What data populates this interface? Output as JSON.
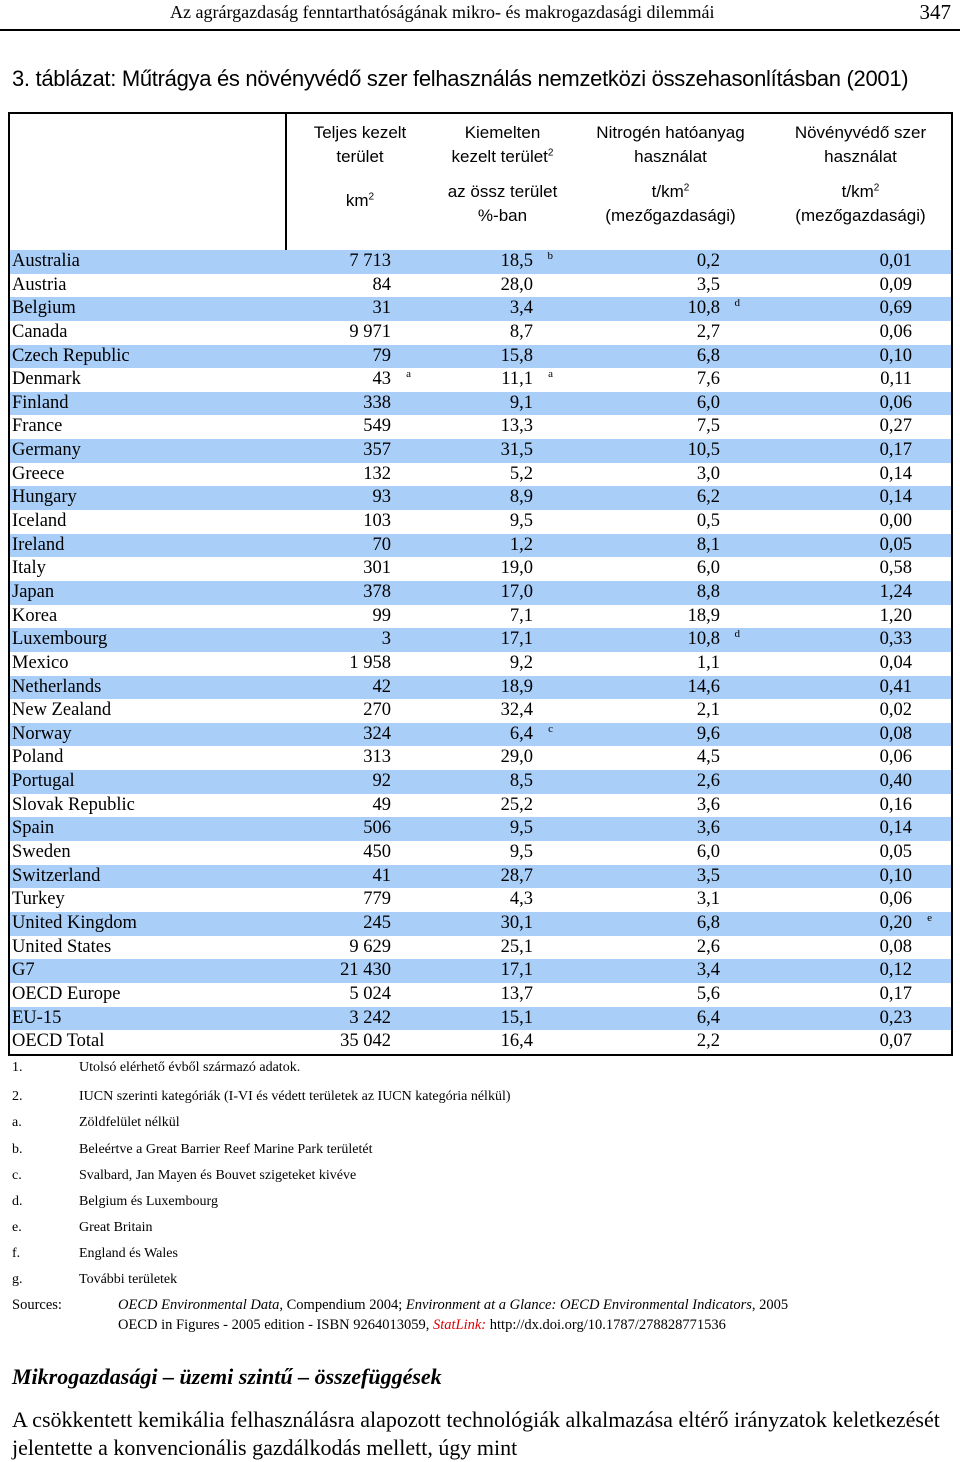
{
  "header": {
    "title": "Az agrárgazdaság fenntarthatóságának mikro- és makrogazdasági dilemmái",
    "page_number": "347"
  },
  "table": {
    "title": "3. táblázat: Műtrágya és növényvédő szer felhasználás nemzetközi összehasonlításban (2001)",
    "columns": [
      {
        "line1": "Teljes kezelt",
        "line2": "terület",
        "sup": "",
        "unit1": "km",
        "unit_sup": "2",
        "unit2": ""
      },
      {
        "line1": "Kiemelten",
        "line2": "kezelt terület",
        "sup": "2",
        "unit1": "az össz terület",
        "unit_sup": "",
        "unit2": "%-ban"
      },
      {
        "line1": "Nitrogén hatóanyag",
        "line2": "használat",
        "sup": "",
        "unit1": "t/km",
        "unit_sup": "2",
        "unit2": "(mezőgazdasági)"
      },
      {
        "line1": "Növényvédő szer",
        "line2": "használat",
        "sup": "",
        "unit1": "t/km",
        "unit_sup": "2",
        "unit2": "(mezőgazdasági)"
      }
    ],
    "rows": [
      {
        "country": "Australia",
        "area": "7 713",
        "area_fn": "",
        "pct": "18,5",
        "pct_fn": "b",
        "nitrogen": "0,2",
        "nitrogen_fn": "",
        "pesticide": "0,01",
        "pesticide_fn": ""
      },
      {
        "country": "Austria",
        "area": "84",
        "area_fn": "",
        "pct": "28,0",
        "pct_fn": "",
        "nitrogen": "3,5",
        "nitrogen_fn": "",
        "pesticide": "0,09",
        "pesticide_fn": ""
      },
      {
        "country": "Belgium",
        "area": "31",
        "area_fn": "",
        "pct": "3,4",
        "pct_fn": "",
        "nitrogen": "10,8",
        "nitrogen_fn": "d",
        "pesticide": "0,69",
        "pesticide_fn": ""
      },
      {
        "country": "Canada",
        "area": "9 971",
        "area_fn": "",
        "pct": "8,7",
        "pct_fn": "",
        "nitrogen": "2,7",
        "nitrogen_fn": "",
        "pesticide": "0,06",
        "pesticide_fn": ""
      },
      {
        "country": "Czech Republic",
        "area": "79",
        "area_fn": "",
        "pct": "15,8",
        "pct_fn": "",
        "nitrogen": "6,8",
        "nitrogen_fn": "",
        "pesticide": "0,10",
        "pesticide_fn": ""
      },
      {
        "country": "Denmark",
        "area": "43",
        "area_fn": "a",
        "pct": "11,1",
        "pct_fn": "a",
        "nitrogen": "7,6",
        "nitrogen_fn": "",
        "pesticide": "0,11",
        "pesticide_fn": ""
      },
      {
        "country": "Finland",
        "area": "338",
        "area_fn": "",
        "pct": "9,1",
        "pct_fn": "",
        "nitrogen": "6,0",
        "nitrogen_fn": "",
        "pesticide": "0,06",
        "pesticide_fn": ""
      },
      {
        "country": "France",
        "area": "549",
        "area_fn": "",
        "pct": "13,3",
        "pct_fn": "",
        "nitrogen": "7,5",
        "nitrogen_fn": "",
        "pesticide": "0,27",
        "pesticide_fn": ""
      },
      {
        "country": "Germany",
        "area": "357",
        "area_fn": "",
        "pct": "31,5",
        "pct_fn": "",
        "nitrogen": "10,5",
        "nitrogen_fn": "",
        "pesticide": "0,17",
        "pesticide_fn": ""
      },
      {
        "country": "Greece",
        "area": "132",
        "area_fn": "",
        "pct": "5,2",
        "pct_fn": "",
        "nitrogen": "3,0",
        "nitrogen_fn": "",
        "pesticide": "0,14",
        "pesticide_fn": ""
      },
      {
        "country": "Hungary",
        "area": "93",
        "area_fn": "",
        "pct": "8,9",
        "pct_fn": "",
        "nitrogen": "6,2",
        "nitrogen_fn": "",
        "pesticide": "0,14",
        "pesticide_fn": ""
      },
      {
        "country": "Iceland",
        "area": "103",
        "area_fn": "",
        "pct": "9,5",
        "pct_fn": "",
        "nitrogen": "0,5",
        "nitrogen_fn": "",
        "pesticide": "0,00",
        "pesticide_fn": ""
      },
      {
        "country": "Ireland",
        "area": "70",
        "area_fn": "",
        "pct": "1,2",
        "pct_fn": "",
        "nitrogen": "8,1",
        "nitrogen_fn": "",
        "pesticide": "0,05",
        "pesticide_fn": ""
      },
      {
        "country": "Italy",
        "area": "301",
        "area_fn": "",
        "pct": "19,0",
        "pct_fn": "",
        "nitrogen": "6,0",
        "nitrogen_fn": "",
        "pesticide": "0,58",
        "pesticide_fn": ""
      },
      {
        "country": "Japan",
        "area": "378",
        "area_fn": "",
        "pct": "17,0",
        "pct_fn": "",
        "nitrogen": "8,8",
        "nitrogen_fn": "",
        "pesticide": "1,24",
        "pesticide_fn": ""
      },
      {
        "country": "Korea",
        "area": "99",
        "area_fn": "",
        "pct": "7,1",
        "pct_fn": "",
        "nitrogen": "18,9",
        "nitrogen_fn": "",
        "pesticide": "1,20",
        "pesticide_fn": ""
      },
      {
        "country": "Luxembourg",
        "area": "3",
        "area_fn": "",
        "pct": "17,1",
        "pct_fn": "",
        "nitrogen": "10,8",
        "nitrogen_fn": "d",
        "pesticide": "0,33",
        "pesticide_fn": ""
      },
      {
        "country": "Mexico",
        "area": "1 958",
        "area_fn": "",
        "pct": "9,2",
        "pct_fn": "",
        "nitrogen": "1,1",
        "nitrogen_fn": "",
        "pesticide": "0,04",
        "pesticide_fn": ""
      },
      {
        "country": "Netherlands",
        "area": "42",
        "area_fn": "",
        "pct": "18,9",
        "pct_fn": "",
        "nitrogen": "14,6",
        "nitrogen_fn": "",
        "pesticide": "0,41",
        "pesticide_fn": ""
      },
      {
        "country": "New Zealand",
        "area": "270",
        "area_fn": "",
        "pct": "32,4",
        "pct_fn": "",
        "nitrogen": "2,1",
        "nitrogen_fn": "",
        "pesticide": "0,02",
        "pesticide_fn": ""
      },
      {
        "country": "Norway",
        "area": "324",
        "area_fn": "",
        "pct": "6,4",
        "pct_fn": "c",
        "nitrogen": "9,6",
        "nitrogen_fn": "",
        "pesticide": "0,08",
        "pesticide_fn": ""
      },
      {
        "country": "Poland",
        "area": "313",
        "area_fn": "",
        "pct": "29,0",
        "pct_fn": "",
        "nitrogen": "4,5",
        "nitrogen_fn": "",
        "pesticide": "0,06",
        "pesticide_fn": ""
      },
      {
        "country": "Portugal",
        "area": "92",
        "area_fn": "",
        "pct": "8,5",
        "pct_fn": "",
        "nitrogen": "2,6",
        "nitrogen_fn": "",
        "pesticide": "0,40",
        "pesticide_fn": ""
      },
      {
        "country": "Slovak Republic",
        "area": "49",
        "area_fn": "",
        "pct": "25,2",
        "pct_fn": "",
        "nitrogen": "3,6",
        "nitrogen_fn": "",
        "pesticide": "0,16",
        "pesticide_fn": ""
      },
      {
        "country": "Spain",
        "area": "506",
        "area_fn": "",
        "pct": "9,5",
        "pct_fn": "",
        "nitrogen": "3,6",
        "nitrogen_fn": "",
        "pesticide": "0,14",
        "pesticide_fn": ""
      },
      {
        "country": "Sweden",
        "area": "450",
        "area_fn": "",
        "pct": "9,5",
        "pct_fn": "",
        "nitrogen": "6,0",
        "nitrogen_fn": "",
        "pesticide": "0,05",
        "pesticide_fn": ""
      },
      {
        "country": "Switzerland",
        "area": "41",
        "area_fn": "",
        "pct": "28,7",
        "pct_fn": "",
        "nitrogen": "3,5",
        "nitrogen_fn": "",
        "pesticide": "0,10",
        "pesticide_fn": ""
      },
      {
        "country": "Turkey",
        "area": "779",
        "area_fn": "",
        "pct": "4,3",
        "pct_fn": "",
        "nitrogen": "3,1",
        "nitrogen_fn": "",
        "pesticide": "0,06",
        "pesticide_fn": ""
      },
      {
        "country": "United Kingdom",
        "area": "245",
        "area_fn": "",
        "pct": "30,1",
        "pct_fn": "",
        "nitrogen": "6,8",
        "nitrogen_fn": "",
        "pesticide": "0,20",
        "pesticide_fn": "e"
      },
      {
        "country": "United States",
        "area": "9 629",
        "area_fn": "",
        "pct": "25,1",
        "pct_fn": "",
        "nitrogen": "2,6",
        "nitrogen_fn": "",
        "pesticide": "0,08",
        "pesticide_fn": ""
      },
      {
        "country": "G7",
        "area": "21 430",
        "area_fn": "",
        "pct": "17,1",
        "pct_fn": "",
        "nitrogen": "3,4",
        "nitrogen_fn": "",
        "pesticide": "0,12",
        "pesticide_fn": ""
      },
      {
        "country": "OECD Europe",
        "area": "5 024",
        "area_fn": "",
        "pct": "13,7",
        "pct_fn": "",
        "nitrogen": "5,6",
        "nitrogen_fn": "",
        "pesticide": "0,17",
        "pesticide_fn": ""
      },
      {
        "country": "EU-15",
        "area": "3 242",
        "area_fn": "",
        "pct": "15,1",
        "pct_fn": "",
        "nitrogen": "6,4",
        "nitrogen_fn": "",
        "pesticide": "0,23",
        "pesticide_fn": ""
      },
      {
        "country": "OECD Total",
        "area": "35 042",
        "area_fn": "",
        "pct": "16,4",
        "pct_fn": "",
        "nitrogen": "2,2",
        "nitrogen_fn": "",
        "pesticide": "0,07",
        "pesticide_fn": ""
      }
    ],
    "band_color": "#a9cef7"
  },
  "notes": [
    {
      "key": "1.",
      "text": "Utolsó elérhető évből származó adatok."
    },
    {
      "key": "2.",
      "text": "IUCN szerinti kategóriák (I-VI és védett területek az IUCN kategória nélkül)"
    },
    {
      "key": "a.",
      "text": "Zöldfelület nélkül"
    },
    {
      "key": "b.",
      "text": "Beleértve a Great Barrier Reef Marine Park területét"
    },
    {
      "key": "c.",
      "text": "Svalbard, Jan Mayen és  Bouvet szigeteket kivéve"
    },
    {
      "key": "d.",
      "text": "Belgium és Luxembourg"
    },
    {
      "key": "e.",
      "text": "Great Britain"
    },
    {
      "key": "f.",
      "text": "England és Wales"
    },
    {
      "key": "g.",
      "text": "További területek"
    }
  ],
  "sources": {
    "label": "Sources:",
    "line1_a": "OECD Environmental Data",
    "line1_b": ", Compendium 2004; ",
    "line1_c": "Environment at a Glance: OECD Environmental Indicators",
    "line1_d": ", 2005",
    "line2_a": "OECD in Figures - 2005 edition - ISBN 9264013059, ",
    "line2_link": "StatLink:",
    "line2_b": " http://dx.doi.org/10.1787/278828771536"
  },
  "section": {
    "heading": "Mikrogazdasági – üzemi szintű – összefüggések",
    "body": "A csökkentett kemikália felhasználásra alapozott technológiák alkalmazása eltérő irányzatok keletkezését jelentette a konvencionális gazdálkodás mellett, úgy mint"
  }
}
